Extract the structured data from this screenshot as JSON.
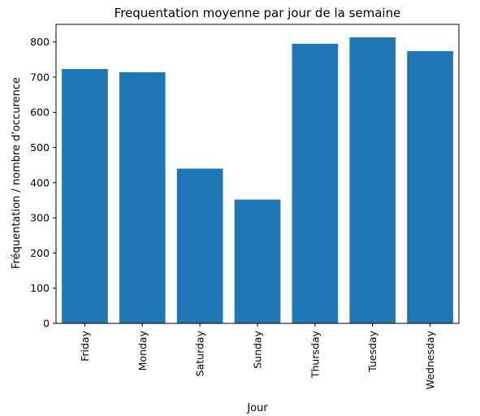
{
  "chart_data": {
    "type": "bar",
    "title": "Frequentation moyenne par jour de la semaine",
    "xlabel": "Jour",
    "ylabel": "Fréquentation / nombre d'occurence",
    "categories": [
      "Friday",
      "Monday",
      "Saturday",
      "Sunday",
      "Thursday",
      "Tuesday",
      "Wednesday"
    ],
    "values": [
      723,
      714,
      440,
      352,
      795,
      813,
      774
    ],
    "ylim": [
      0,
      850
    ],
    "yticks": [
      0,
      100,
      200,
      300,
      400,
      500,
      600,
      700,
      800
    ],
    "bar_color": "#1f77b4",
    "grid": false,
    "legend": "none"
  }
}
